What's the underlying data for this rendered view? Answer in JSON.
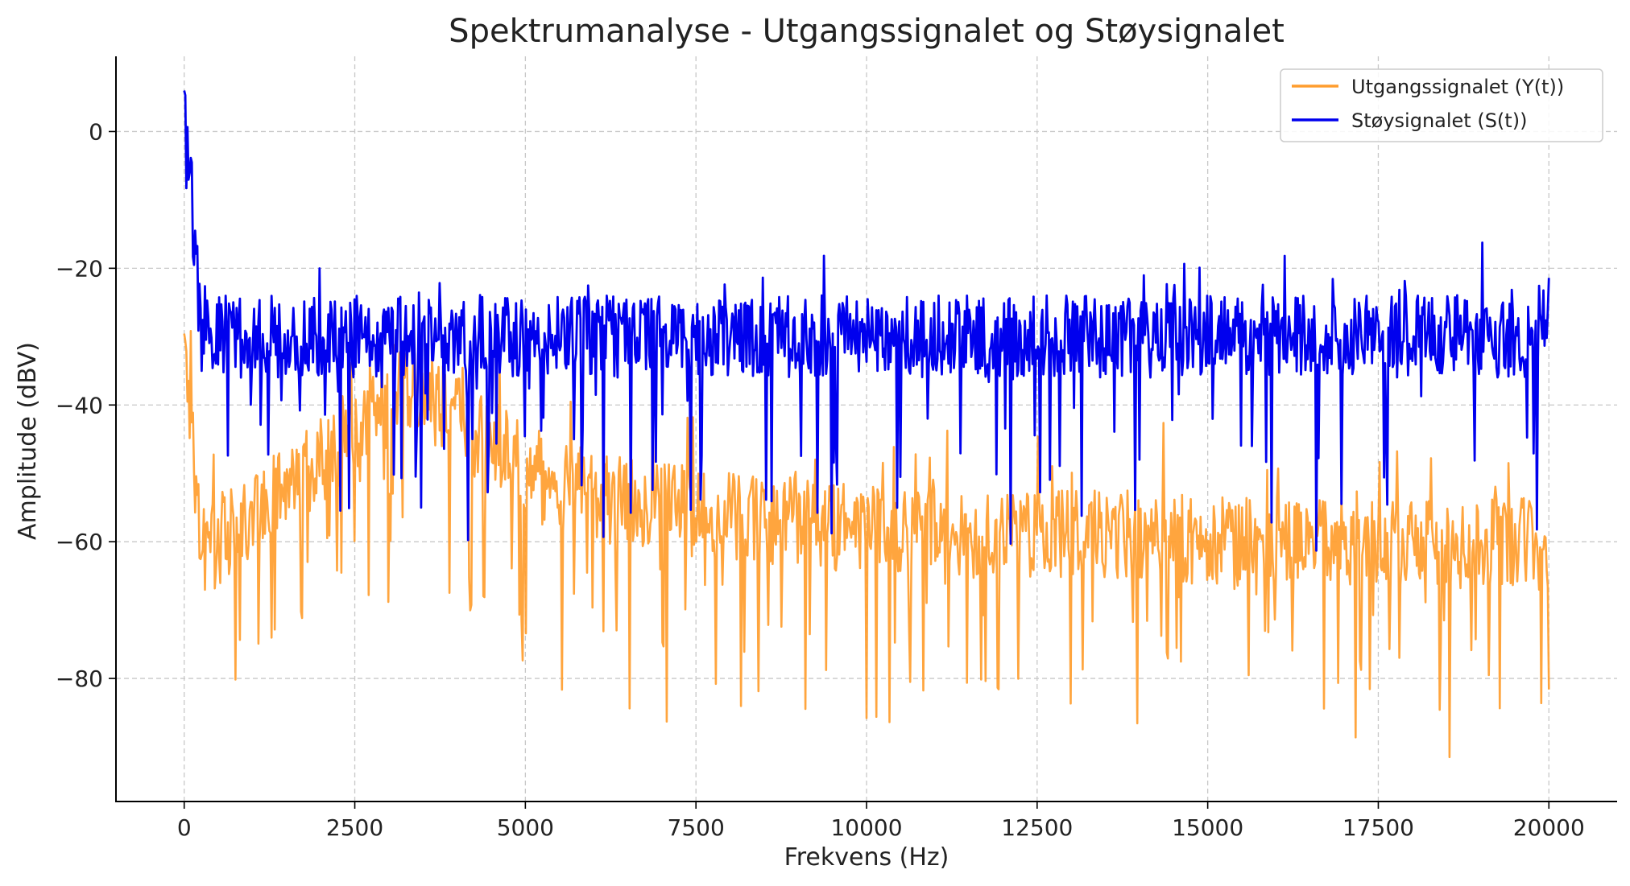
{
  "chart_data": {
    "type": "line",
    "title": "Spektrumanalyse - Utgangssignalet og Støysignalet",
    "xlabel": "Frekvens (Hz)",
    "ylabel": "Amplitude (dBV)",
    "xlim": [
      -1000,
      21000
    ],
    "ylim": [
      -98,
      11
    ],
    "xticks": [
      0,
      2500,
      5000,
      7500,
      10000,
      12500,
      15000,
      17500,
      20000
    ],
    "xtick_labels": [
      "0",
      "2500",
      "5000",
      "7500",
      "10000",
      "12500",
      "15000",
      "17500",
      "20000"
    ],
    "yticks": [
      0,
      -20,
      -40,
      -60,
      -80
    ],
    "ytick_labels": [
      "0",
      "−20",
      "−40",
      "−60",
      "−80"
    ],
    "grid": true,
    "legend_position": "top-right",
    "series": [
      {
        "name": "Utgangssignalet (Y(t))",
        "color": "#ff9d2e",
        "x": [
          0,
          250,
          500,
          750,
          1000,
          1250,
          1500,
          1750,
          2000,
          2250,
          2500,
          2750,
          3000,
          3250,
          3500,
          3750,
          4000,
          4250,
          4500,
          4750,
          5000,
          5250,
          5500,
          5750,
          6000,
          6250,
          6500,
          6750,
          7000,
          7250,
          7500,
          7750,
          8000,
          8250,
          8500,
          8750,
          9000,
          9250,
          9500,
          9750,
          10000,
          10250,
          10500,
          10750,
          11000,
          11250,
          11500,
          11750,
          12000,
          12250,
          12500,
          12750,
          13000,
          13250,
          13500,
          13750,
          14000,
          14250,
          14500,
          14750,
          15000,
          15250,
          15500,
          15750,
          16000,
          16250,
          16500,
          16750,
          17000,
          17250,
          17500,
          17750,
          18000,
          18250,
          18500,
          18750,
          19000,
          19250,
          19500,
          19750,
          20000
        ],
        "values": [
          -30,
          -62,
          -60,
          -58,
          -56,
          -54,
          -52,
          -50,
          -48,
          -46,
          -43,
          -40,
          -38,
          -37,
          -38,
          -40,
          -42,
          -44,
          -45,
          -47,
          -50,
          -51,
          -52,
          -52,
          -53,
          -54,
          -54,
          -55,
          -55,
          -55,
          -56,
          -56,
          -56,
          -57,
          -57,
          -57,
          -57,
          -57,
          -58,
          -58,
          -58,
          -58,
          -58,
          -58,
          -58,
          -58,
          -59,
          -59,
          -59,
          -59,
          -59,
          -59,
          -59,
          -59,
          -59,
          -59,
          -59,
          -59,
          -59,
          -60,
          -60,
          -60,
          -60,
          -60,
          -60,
          -60,
          -60,
          -60,
          -60,
          -60,
          -60,
          -60,
          -60,
          -60,
          -60,
          -60,
          -60,
          -60,
          -60,
          -60,
          -62
        ]
      },
      {
        "name": "Støysignalet (S(t))",
        "color": "#0000ee",
        "x": [
          0,
          250,
          500,
          750,
          1000,
          1250,
          1500,
          1750,
          2000,
          2250,
          2500,
          2750,
          3000,
          3250,
          3500,
          3750,
          4000,
          4250,
          4500,
          4750,
          5000,
          5250,
          5500,
          5750,
          6000,
          6250,
          6500,
          6750,
          7000,
          7250,
          7500,
          7750,
          8000,
          8250,
          8500,
          8750,
          9000,
          9250,
          9500,
          9750,
          10000,
          10250,
          10500,
          10750,
          11000,
          11250,
          11500,
          11750,
          12000,
          12250,
          12500,
          12750,
          13000,
          13250,
          13500,
          13750,
          14000,
          14250,
          14500,
          14750,
          15000,
          15250,
          15500,
          15750,
          16000,
          16250,
          16500,
          16750,
          17000,
          17250,
          17500,
          17750,
          18000,
          18250,
          18500,
          18750,
          19000,
          19250,
          19500,
          19750,
          20000
        ],
        "values": [
          6,
          -30,
          -30,
          -30,
          -30,
          -30,
          -30,
          -30,
          -30,
          -30,
          -30,
          -30,
          -30,
          -30,
          -30,
          -30,
          -30,
          -30,
          -30,
          -30,
          -30,
          -30,
          -30,
          -30,
          -30,
          -30,
          -30,
          -30,
          -30,
          -30,
          -30,
          -30,
          -30,
          -30,
          -30,
          -30,
          -30,
          -30,
          -30,
          -30,
          -30,
          -30,
          -30,
          -30,
          -30,
          -30,
          -30,
          -30,
          -30,
          -30,
          -30,
          -30,
          -30,
          -30,
          -30,
          -30,
          -30,
          -30,
          -30,
          -30,
          -30,
          -30,
          -30,
          -30,
          -30,
          -30,
          -30,
          -30,
          -30,
          -30,
          -30,
          -30,
          -30,
          -30,
          -30,
          -30,
          -30,
          -30,
          -30,
          -30,
          -25
        ]
      }
    ]
  }
}
